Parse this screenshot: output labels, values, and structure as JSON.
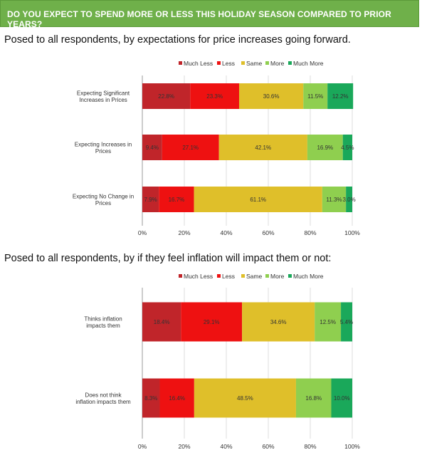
{
  "header": {
    "title": "DO YOU EXPECT TO SPEND MORE OR LESS THIS HOLIDAY SEASON COMPARED TO PRIOR YEARS?"
  },
  "colors": {
    "banner": "#6fb04a",
    "much_less": "#c0252a",
    "less": "#ee1111",
    "same": "#dfbf2a",
    "more": "#8fcf4f",
    "much_more": "#1aa85a"
  },
  "chart_data": [
    {
      "type": "bar",
      "orientation": "horizontal",
      "stacked": true,
      "title": "Posed to all respondents, by expectations for price increases going forward.",
      "categories": [
        "Expecting Significant Increases in Prices",
        "Expecting Increases in Prices",
        "Expecting No Change in Prices"
      ],
      "series": [
        {
          "name": "Much Less",
          "values": [
            22.8,
            9.4,
            7.9
          ]
        },
        {
          "name": "Less",
          "values": [
            23.3,
            27.1,
            16.7
          ]
        },
        {
          "name": "Same",
          "values": [
            30.6,
            42.1,
            61.1
          ]
        },
        {
          "name": "More",
          "values": [
            11.5,
            16.9,
            11.3
          ]
        },
        {
          "name": "Much More",
          "values": [
            12.2,
            4.5,
            3.0
          ]
        }
      ],
      "data_labels": [
        [
          "22.8%",
          "23.3%",
          "30.6%",
          "11.5%",
          "12.2%"
        ],
        [
          "9.4%",
          "27.1%",
          "42.1%",
          "16.9%",
          "4.5%"
        ],
        [
          "7.9%",
          "16.7%",
          "61.1%",
          "11.3%",
          "3.0%"
        ]
      ],
      "xlim": [
        0,
        100
      ],
      "xticks": [
        "0%",
        "20%",
        "40%",
        "60%",
        "80%",
        "100%"
      ],
      "legend_position": "top"
    },
    {
      "type": "bar",
      "orientation": "horizontal",
      "stacked": true,
      "title": "Posed to all respondents, by if they feel inflation will impact them or not:",
      "categories": [
        "Thinks inflation impacts them",
        "Does not think inflation impacts them"
      ],
      "series": [
        {
          "name": "Much Less",
          "values": [
            18.4,
            8.3
          ]
        },
        {
          "name": "Less",
          "values": [
            29.1,
            16.4
          ]
        },
        {
          "name": "Same",
          "values": [
            34.6,
            48.5
          ]
        },
        {
          "name": "More",
          "values": [
            12.5,
            16.8
          ]
        },
        {
          "name": "Much More",
          "values": [
            5.4,
            10.0
          ]
        }
      ],
      "data_labels": [
        [
          "18.4%",
          "29.1%",
          "34.6%",
          "12.5%",
          "5.4%"
        ],
        [
          "8.3%",
          "16.4%",
          "48.5%",
          "16.8%",
          "10.0%"
        ]
      ],
      "xlim": [
        0,
        100
      ],
      "xticks": [
        "0%",
        "20%",
        "40%",
        "60%",
        "80%",
        "100%"
      ],
      "legend_position": "top"
    }
  ]
}
